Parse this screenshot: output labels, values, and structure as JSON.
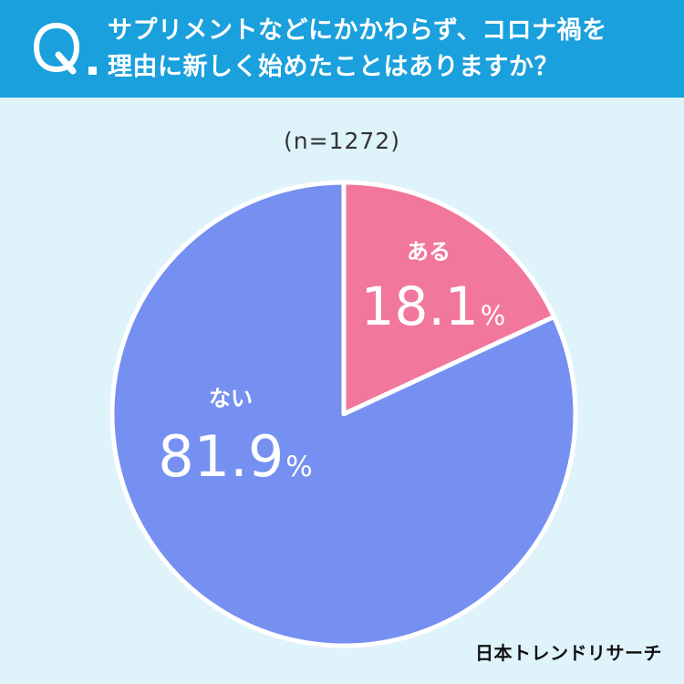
{
  "question": {
    "mark": "Q",
    "line1": "サプリメントなどにかかわらず、コロナ禍を",
    "line2": "理由に新しく始めたことはありますか？"
  },
  "sample_size": "(n=1272)",
  "brand": "日本トレンドリサーチ",
  "colors": {
    "header": "#1aa0dc",
    "background": "#dff3fb",
    "aru": "#f2779c",
    "nai": "#7590f0"
  },
  "chart_data": {
    "type": "pie",
    "labels": [
      "ある",
      "ない"
    ],
    "values": [
      18.1,
      81.9
    ],
    "value_texts": [
      "18.1",
      "81.9"
    ],
    "unit": "%",
    "colors": [
      "#f2779c",
      "#7590f0"
    ],
    "start": "12 o'clock",
    "direction": "clockwise"
  }
}
